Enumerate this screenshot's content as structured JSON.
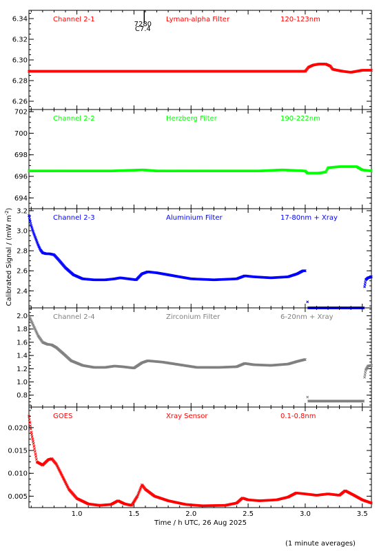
{
  "figure": {
    "ylabel": "Calibrated Signal / (mW m",
    "ylabel_sup": "-2",
    "ylabel_tail": ")",
    "xlabel": "Time / h UTC, 26 Aug 2025",
    "footnote": "(1 minute averages)"
  },
  "chart_data": [
    {
      "type": "scatter",
      "labels": [
        "Channel 2-1",
        "Lyman-alpha Filter",
        "120-123nm"
      ],
      "color": "#ff0000",
      "marker": "x",
      "xlim": [
        0.58,
        3.58
      ],
      "ylim": [
        6.252,
        6.348
      ],
      "x_ticks": [
        1.0,
        1.5,
        2.0,
        2.5,
        3.0,
        3.5
      ],
      "x_tick_labels": [],
      "y_ticks": [
        6.26,
        6.28,
        6.3,
        6.32,
        6.34
      ],
      "y_tick_labels": [
        "6.26",
        "6.28",
        "6.30",
        "6.32",
        "6.34"
      ],
      "marker_annotation": {
        "x": 1.59,
        "text_top": "7280",
        "text_bottom": "C7.4"
      },
      "segments": [
        {
          "kind": "line",
          "points": [
            [
              0.58,
              6.289
            ],
            [
              3.0,
              6.289
            ]
          ]
        },
        {
          "kind": "curve",
          "points": [
            [
              3.0,
              6.289
            ],
            [
              3.03,
              6.293
            ],
            [
              3.07,
              6.295
            ],
            [
              3.12,
              6.296
            ],
            [
              3.18,
              6.296
            ],
            [
              3.22,
              6.294
            ],
            [
              3.24,
              6.291
            ],
            [
              3.28,
              6.29
            ],
            [
              3.33,
              6.289
            ],
            [
              3.4,
              6.288
            ],
            [
              3.45,
              6.289
            ],
            [
              3.5,
              6.29
            ],
            [
              3.58,
              6.29
            ]
          ]
        }
      ]
    },
    {
      "type": "scatter",
      "labels": [
        "Channel 2-2",
        "Herzberg Filter",
        "190-222nm"
      ],
      "color": "#00ff00",
      "marker": "x",
      "xlim": [
        0.58,
        3.58
      ],
      "ylim": [
        693.0,
        702.2
      ],
      "x_ticks": [
        1.0,
        1.5,
        2.0,
        2.5,
        3.0,
        3.5
      ],
      "x_tick_labels": [],
      "y_ticks": [
        694,
        696,
        698,
        700,
        702
      ],
      "y_tick_labels": [
        "694",
        "696",
        "698",
        "700",
        "702"
      ],
      "segments": [
        {
          "kind": "curve",
          "points": [
            [
              0.58,
              696.5
            ],
            [
              1.3,
              696.5
            ],
            [
              1.58,
              696.6
            ],
            [
              1.7,
              696.5
            ],
            [
              2.0,
              696.5
            ],
            [
              2.6,
              696.5
            ],
            [
              2.8,
              696.6
            ],
            [
              3.0,
              696.5
            ],
            [
              3.02,
              696.3
            ],
            [
              3.12,
              696.3
            ],
            [
              3.18,
              696.4
            ],
            [
              3.2,
              696.8
            ],
            [
              3.3,
              696.9
            ],
            [
              3.45,
              696.9
            ],
            [
              3.5,
              696.6
            ],
            [
              3.58,
              696.5
            ]
          ]
        }
      ]
    },
    {
      "type": "scatter",
      "labels": [
        "Channel 2-3",
        "Aluminium Filter",
        "17-80nm + Xray"
      ],
      "color": "#0000ff",
      "marker": "x",
      "xlim": [
        0.58,
        3.58
      ],
      "ylim": [
        2.23,
        3.22
      ],
      "x_ticks": [
        1.0,
        1.5,
        2.0,
        2.5,
        3.0,
        3.5
      ],
      "x_tick_labels": [],
      "y_ticks": [
        2.4,
        2.6,
        2.8,
        3.0,
        3.2
      ],
      "y_tick_labels": [
        "2.4",
        "2.6",
        "2.8",
        "3.0",
        "3.2"
      ],
      "segments": [
        {
          "kind": "curve",
          "points": [
            [
              0.58,
              3.15
            ],
            [
              0.6,
              3.05
            ],
            [
              0.62,
              2.98
            ],
            [
              0.64,
              2.92
            ],
            [
              0.66,
              2.86
            ],
            [
              0.68,
              2.81
            ],
            [
              0.7,
              2.78
            ],
            [
              0.73,
              2.77
            ],
            [
              0.76,
              2.77
            ],
            [
              0.8,
              2.76
            ],
            [
              0.84,
              2.71
            ],
            [
              0.9,
              2.63
            ],
            [
              0.97,
              2.56
            ],
            [
              1.05,
              2.52
            ],
            [
              1.15,
              2.51
            ],
            [
              1.25,
              2.51
            ],
            [
              1.33,
              2.52
            ],
            [
              1.38,
              2.53
            ],
            [
              1.45,
              2.52
            ],
            [
              1.52,
              2.51
            ],
            [
              1.57,
              2.57
            ],
            [
              1.62,
              2.59
            ],
            [
              1.7,
              2.58
            ],
            [
              1.8,
              2.56
            ],
            [
              1.9,
              2.54
            ],
            [
              2.0,
              2.52
            ],
            [
              2.2,
              2.51
            ],
            [
              2.4,
              2.52
            ],
            [
              2.47,
              2.55
            ],
            [
              2.55,
              2.54
            ],
            [
              2.7,
              2.53
            ],
            [
              2.85,
              2.54
            ],
            [
              2.93,
              2.57
            ],
            [
              2.98,
              2.6
            ],
            [
              3.0,
              2.6
            ]
          ]
        },
        {
          "kind": "line",
          "points": [
            [
              3.03,
              2.23
            ],
            [
              3.51,
              2.23
            ]
          ]
        },
        {
          "kind": "curve",
          "points": [
            [
              3.52,
              2.44
            ],
            [
              3.53,
              2.51
            ],
            [
              3.55,
              2.53
            ],
            [
              3.58,
              2.54
            ]
          ]
        }
      ],
      "isolated": [
        [
          3.02,
          2.29
        ]
      ]
    },
    {
      "type": "scatter",
      "labels": [
        "Channel 2-4",
        "Zirconium Filter",
        "6-20nm + Xray"
      ],
      "color": "#808080",
      "marker": "x",
      "xlim": [
        0.58,
        3.58
      ],
      "ylim": [
        0.62,
        2.12
      ],
      "x_ticks": [
        1.0,
        1.5,
        2.0,
        2.5,
        3.0,
        3.5
      ],
      "x_tick_labels": [],
      "y_ticks": [
        0.8,
        1.0,
        1.2,
        1.4,
        1.6,
        1.8,
        2.0
      ],
      "y_tick_labels": [
        "0.8",
        "1.0",
        "1.2",
        "1.4",
        "1.6",
        "1.8",
        "2.0"
      ],
      "segments": [
        {
          "kind": "curve",
          "points": [
            [
              0.58,
              2.0
            ],
            [
              0.62,
              1.85
            ],
            [
              0.66,
              1.7
            ],
            [
              0.7,
              1.6
            ],
            [
              0.74,
              1.57
            ],
            [
              0.78,
              1.56
            ],
            [
              0.82,
              1.52
            ],
            [
              0.88,
              1.43
            ],
            [
              0.95,
              1.32
            ],
            [
              1.05,
              1.25
            ],
            [
              1.15,
              1.22
            ],
            [
              1.25,
              1.22
            ],
            [
              1.33,
              1.24
            ],
            [
              1.4,
              1.23
            ],
            [
              1.5,
              1.21
            ],
            [
              1.57,
              1.29
            ],
            [
              1.62,
              1.32
            ],
            [
              1.75,
              1.3
            ],
            [
              1.9,
              1.26
            ],
            [
              2.05,
              1.22
            ],
            [
              2.25,
              1.22
            ],
            [
              2.4,
              1.23
            ],
            [
              2.47,
              1.28
            ],
            [
              2.55,
              1.26
            ],
            [
              2.7,
              1.25
            ],
            [
              2.85,
              1.27
            ],
            [
              2.93,
              1.31
            ],
            [
              3.0,
              1.34
            ]
          ]
        },
        {
          "kind": "line",
          "points": [
            [
              3.03,
              0.71
            ],
            [
              3.51,
              0.71
            ]
          ]
        },
        {
          "kind": "curve",
          "points": [
            [
              3.52,
              1.07
            ],
            [
              3.53,
              1.18
            ],
            [
              3.55,
              1.24
            ],
            [
              3.58,
              1.25
            ]
          ]
        }
      ],
      "isolated": [
        [
          3.02,
          0.77
        ]
      ]
    },
    {
      "type": "scatter",
      "labels": [
        "GOES",
        "Xray Sensor",
        "0.1-0.8nm"
      ],
      "color": "#ff0000",
      "marker": "x",
      "xlim": [
        0.58,
        3.58
      ],
      "ylim": [
        0.0025,
        0.0245
      ],
      "x_ticks": [
        1.0,
        1.5,
        2.0,
        2.5,
        3.0,
        3.5
      ],
      "x_tick_labels": [
        "1.0",
        "1.5",
        "2.0",
        "2.5",
        "3.0",
        "3.5"
      ],
      "y_ticks": [
        0.005,
        0.01,
        0.015,
        0.02
      ],
      "y_tick_labels": [
        "0.005",
        "0.010",
        "0.015",
        "0.020"
      ],
      "segments": [
        {
          "kind": "curve",
          "points": [
            [
              0.58,
              0.0225
            ],
            [
              0.6,
              0.019
            ],
            [
              0.62,
              0.0165
            ],
            [
              0.65,
              0.0125
            ],
            [
              0.7,
              0.0118
            ],
            [
              0.75,
              0.013
            ],
            [
              0.78,
              0.0132
            ],
            [
              0.82,
              0.012
            ],
            [
              0.88,
              0.009
            ],
            [
              0.93,
              0.0065
            ],
            [
              1.0,
              0.0045
            ],
            [
              1.1,
              0.0033
            ],
            [
              1.2,
              0.003
            ],
            [
              1.3,
              0.0032
            ],
            [
              1.36,
              0.004
            ],
            [
              1.42,
              0.0033
            ],
            [
              1.48,
              0.003
            ],
            [
              1.53,
              0.005
            ],
            [
              1.57,
              0.0075
            ],
            [
              1.6,
              0.0065
            ],
            [
              1.68,
              0.005
            ],
            [
              1.8,
              0.004
            ],
            [
              1.95,
              0.0032
            ],
            [
              2.1,
              0.0029
            ],
            [
              2.3,
              0.003
            ],
            [
              2.4,
              0.0035
            ],
            [
              2.45,
              0.0046
            ],
            [
              2.5,
              0.0042
            ],
            [
              2.6,
              0.004
            ],
            [
              2.75,
              0.0042
            ],
            [
              2.85,
              0.0048
            ],
            [
              2.92,
              0.0057
            ],
            [
              3.0,
              0.0055
            ],
            [
              3.1,
              0.0052
            ],
            [
              3.2,
              0.0055
            ],
            [
              3.3,
              0.0052
            ],
            [
              3.35,
              0.0062
            ],
            [
              3.42,
              0.0053
            ],
            [
              3.5,
              0.0042
            ],
            [
              3.58,
              0.0035
            ]
          ]
        }
      ]
    }
  ]
}
